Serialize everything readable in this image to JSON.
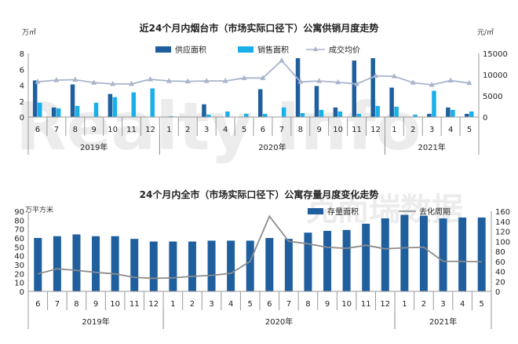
{
  "watermark": {
    "text": "Realty Info",
    "cn_text": "克而瑞数据"
  },
  "chart_data": [
    {
      "type": "bar",
      "title": "近24个月内烟台市（市场实际口径下）公寓供销月度走势",
      "left_unit": "万㎡",
      "right_unit": "元/㎡",
      "categories": [
        "6",
        "7",
        "8",
        "9",
        "10",
        "11",
        "12",
        "1",
        "2",
        "3",
        "4",
        "5",
        "6",
        "7",
        "8",
        "9",
        "10",
        "11",
        "12",
        "1",
        "2",
        "3",
        "4",
        "5"
      ],
      "years": [
        {
          "label": "2019年",
          "from": 0,
          "to": 6
        },
        {
          "label": "2020年",
          "from": 7,
          "to": 18
        },
        {
          "label": "2021年",
          "from": 19,
          "to": 23
        }
      ],
      "ylim": [
        0,
        8
      ],
      "yticks": [
        "0",
        "2",
        "4",
        "6",
        "8"
      ],
      "y2lim": [
        0,
        15000
      ],
      "y2ticks": [
        "0",
        "5000",
        "10000",
        "15000"
      ],
      "series": [
        {
          "name": "供应面积",
          "kind": "bar",
          "color": "#1f5f9e",
          "values": [
            4.6,
            1.2,
            4.1,
            0,
            2.9,
            0,
            0,
            0,
            0,
            1.6,
            0,
            0,
            3.5,
            0,
            7.4,
            3.9,
            1.2,
            7.1,
            7.4,
            3.7,
            0,
            0.4,
            1.2,
            0.4
          ]
        },
        {
          "name": "销售面积",
          "kind": "bar",
          "color": "#19b0ea",
          "values": [
            1.8,
            1.1,
            1.4,
            1.8,
            2.5,
            3.1,
            3.6,
            0.1,
            0,
            0.3,
            0.7,
            0.4,
            0.4,
            1.2,
            0.5,
            0.9,
            0.7,
            0.4,
            1.4,
            1.3,
            0.3,
            3.3,
            0.9,
            0.7
          ]
        },
        {
          "name": "成交均价",
          "kind": "line",
          "axis": "right",
          "color": "#aab4cc",
          "values": [
            8300,
            8700,
            8800,
            8100,
            7800,
            7800,
            8900,
            8500,
            8400,
            8500,
            8500,
            9200,
            9200,
            13300,
            8300,
            8500,
            8200,
            7800,
            9700,
            9600,
            8100,
            7600,
            8600,
            8000
          ]
        }
      ]
    },
    {
      "type": "bar",
      "title": "24个月内全市（市场实际口径下）公寓存量月度变化走势",
      "left_unit": "万平方米",
      "categories": [
        "6",
        "7",
        "8",
        "9",
        "10",
        "11",
        "12",
        "1",
        "2",
        "3",
        "4",
        "5",
        "6",
        "7",
        "8",
        "9",
        "10",
        "11",
        "12",
        "1",
        "2",
        "3",
        "4",
        "5"
      ],
      "years": [
        {
          "label": "2019年",
          "from": 0,
          "to": 6
        },
        {
          "label": "2020年",
          "from": 7,
          "to": 18
        },
        {
          "label": "2021年",
          "from": 19,
          "to": 23
        }
      ],
      "ylim": [
        0,
        90
      ],
      "yticks": [
        "0",
        "10",
        "20",
        "30",
        "40",
        "50",
        "60",
        "70",
        "80",
        "90"
      ],
      "y2lim": [
        0,
        160
      ],
      "y2ticks": [
        "0",
        "20",
        "40",
        "60",
        "80",
        "100",
        "120",
        "140",
        "160"
      ],
      "series": [
        {
          "name": "存量面积",
          "kind": "bar",
          "color": "#1f5f9e",
          "values": [
            60,
            62,
            64,
            62,
            62,
            59,
            56,
            56,
            56,
            57,
            57,
            57,
            60,
            59,
            66,
            68,
            69,
            76,
            82,
            86,
            85,
            82,
            83,
            83
          ]
        },
        {
          "name": "去化周期",
          "kind": "line",
          "axis": "right",
          "color": "#8c8c8c",
          "values": [
            35,
            45,
            42,
            38,
            35,
            28,
            26,
            27,
            30,
            32,
            36,
            60,
            150,
            100,
            95,
            88,
            86,
            92,
            85,
            87,
            88,
            60,
            60,
            59
          ]
        }
      ]
    }
  ]
}
